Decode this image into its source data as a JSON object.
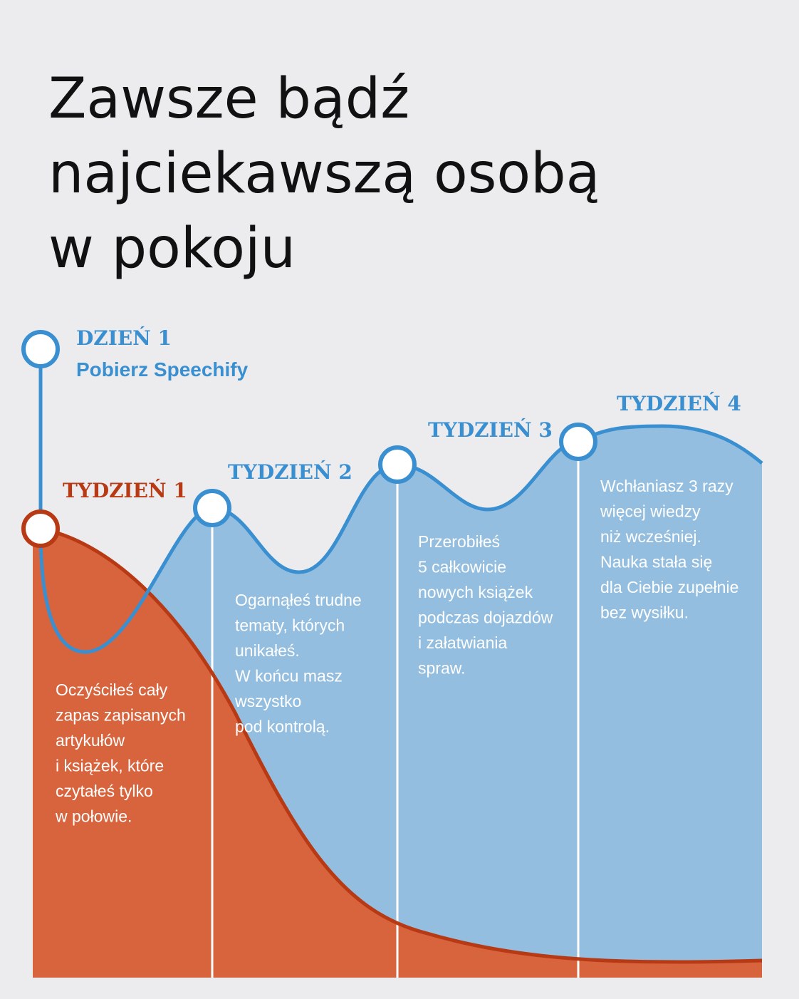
{
  "title": {
    "lines": [
      "Zawsze bądź",
      "najciekawszą osobą",
      "w pokoju"
    ]
  },
  "milestones": [
    {
      "label": "DZIEŃ 1",
      "subtitle": "Pobierz Speechify"
    },
    {
      "label": "TYDZIEŃ 1",
      "description": [
        "Oczyściłeś cały",
        "zapas zapisanych",
        "artykułów",
        "i książek, które",
        "czytałeś tylko",
        " w połowie."
      ]
    },
    {
      "label": "TYDZIEŃ 2",
      "description": [
        "Ogarnąłeś trudne",
        "tematy, których",
        "unikałeś.",
        "W końcu masz",
        "wszystko",
        "pod kontrolą."
      ]
    },
    {
      "label": "TYDZIEŃ 3",
      "description": [
        "Przerobiłeś",
        "5 całkowicie",
        "nowych książek",
        "podczas dojazdów",
        "i załatwiania",
        "spraw."
      ]
    },
    {
      "label": "TYDZIEŃ 4",
      "description": [
        "Wchłaniasz 3 razy",
        "więcej wiedzy",
        "niż wcześniej.",
        "Nauka stała się",
        "dla Ciebie zupełnie",
        "bez wysiłku."
      ]
    }
  ]
}
